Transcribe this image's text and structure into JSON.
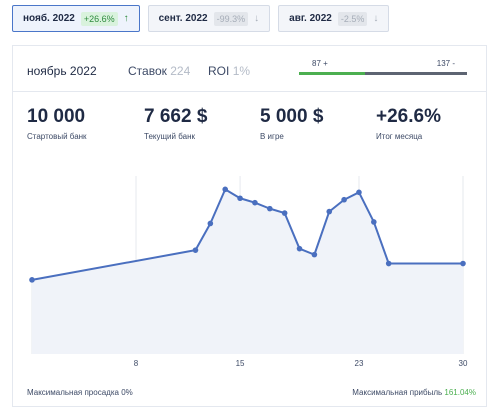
{
  "tabs": [
    {
      "month": "нояб. 2022",
      "pct": "+26.6%",
      "dir": "up",
      "active": true
    },
    {
      "month": "сент. 2022",
      "pct": "-99.3%",
      "dir": "down",
      "active": false
    },
    {
      "month": "авг. 2022",
      "pct": "-2.5%",
      "dir": "down",
      "active": false
    }
  ],
  "header": {
    "month": "ноябрь 2022",
    "bets_label": "Ставок",
    "bets_value": "224",
    "roi_label": "ROI",
    "roi_value": "1%",
    "progress_left": "87 +",
    "progress_right": "137 -",
    "progress_fraction": 0.39
  },
  "stats": [
    {
      "value": "10 000",
      "label": "Стартовый банк"
    },
    {
      "value": "7 662 $",
      "label": "Текущий банк"
    },
    {
      "value": "5 000 $",
      "label": "В игре"
    },
    {
      "value": "+26.6%",
      "label": "Итог месяца"
    }
  ],
  "footer": {
    "max_drawdown_label": "Максимальная просадка",
    "max_drawdown_value": "0%",
    "max_profit_label": "Максимальная прибыль",
    "max_profit_value": "161.04%"
  },
  "chart_data": {
    "type": "area",
    "x": [
      1,
      12,
      13,
      14,
      15,
      16,
      17,
      18,
      19,
      20,
      21,
      22,
      23,
      24,
      25,
      30
    ],
    "y": [
      0.0,
      0.2,
      0.38,
      0.61,
      0.55,
      0.52,
      0.48,
      0.45,
      0.21,
      0.17,
      0.46,
      0.54,
      0.59,
      0.39,
      0.11,
      0.11
    ],
    "xticks": [
      8,
      15,
      23,
      30
    ],
    "xlim": [
      1,
      30
    ],
    "ylim": [
      -0.5,
      0.7
    ],
    "grid": "vertical",
    "color": "#4a6fbf",
    "fill": "#f0f3f9"
  }
}
